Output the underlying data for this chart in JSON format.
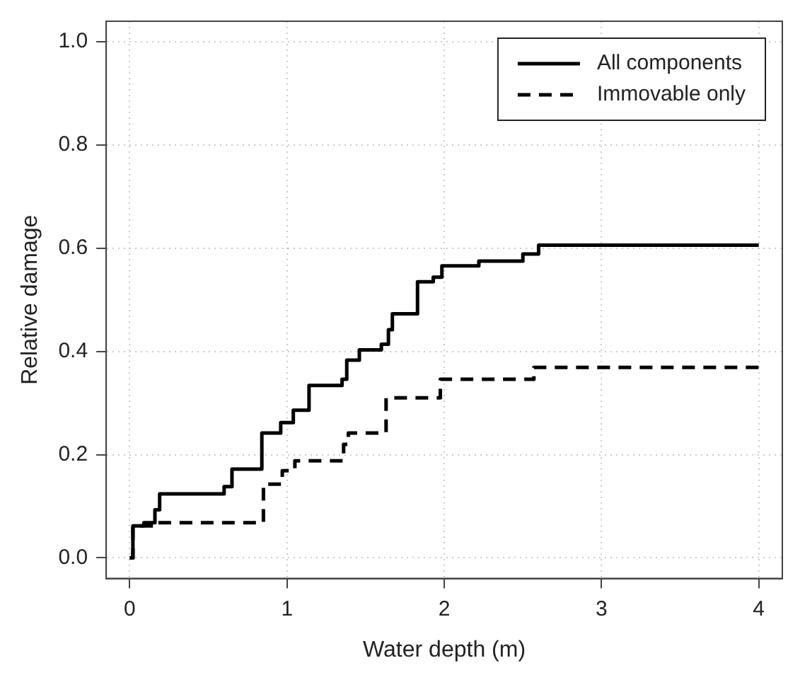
{
  "chart_data": {
    "type": "step",
    "xlabel": "Water depth (m)",
    "ylabel": "Relative damage",
    "xlim": [
      -0.15,
      4.15
    ],
    "ylim": [
      -0.04,
      1.04
    ],
    "xticks": [
      0,
      1,
      2,
      3,
      4
    ],
    "yticks": [
      {
        "value": 0,
        "label": "0.0"
      },
      {
        "value": 0.2,
        "label": "0.2"
      },
      {
        "value": 0.4,
        "label": "0.4"
      },
      {
        "value": 0.6,
        "label": "0.6"
      },
      {
        "value": 0.8,
        "label": "0.8"
      },
      {
        "value": 1,
        "label": "1.0"
      }
    ],
    "grid": true,
    "legend": "top right",
    "series": [
      {
        "name": "All components",
        "color": "#000000",
        "line_style": "solid",
        "x": [
          0,
          0.02,
          0.09,
          0.16,
          0.19,
          0.6,
          0.65,
          0.84,
          0.96,
          1.04,
          1.14,
          1.35,
          1.38,
          1.46,
          1.6,
          1.645,
          1.67,
          1.83,
          1.93,
          1.985,
          2.22,
          2.5,
          2.6,
          4
        ],
        "values": [
          0,
          0.062,
          0.068,
          0.093,
          0.124,
          0.138,
          0.172,
          0.242,
          0.262,
          0.286,
          0.334,
          0.346,
          0.383,
          0.403,
          0.414,
          0.442,
          0.473,
          0.535,
          0.544,
          0.566,
          0.575,
          0.589,
          0.606,
          0.606
        ]
      },
      {
        "name": "Immovable only",
        "color": "#000000",
        "line_style": "dashed",
        "x": [
          0,
          0.02,
          0.15,
          0.85,
          0.97,
          1.05,
          1.36,
          1.39,
          1.63,
          1.975,
          2.57,
          4
        ],
        "values": [
          0,
          0.062,
          0.068,
          0.143,
          0.169,
          0.188,
          0.22,
          0.242,
          0.31,
          0.346,
          0.369,
          0.369
        ]
      }
    ]
  }
}
